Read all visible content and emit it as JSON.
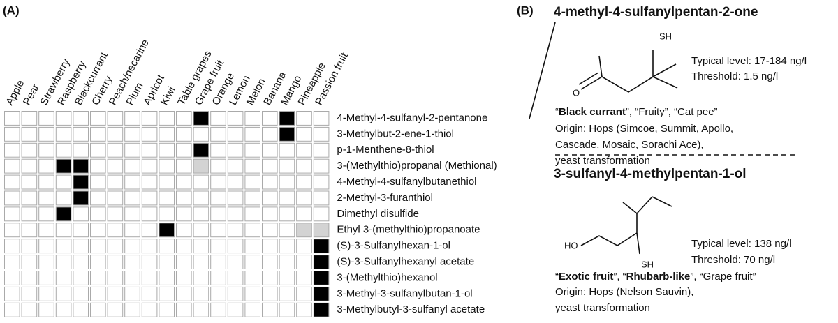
{
  "panel_a": {
    "label": "(A)",
    "columns": [
      "Apple",
      "Pear",
      "Strawberry",
      "Raspberry",
      "Blackcurrant",
      "Cherry",
      "Peach/necarine",
      "Plum",
      "Apricot",
      "Kiwi",
      "Table grapes",
      "Grape fruit",
      "Orange",
      "Lemon",
      "Melon",
      "Banana",
      "Mango",
      "Pineapple",
      "Passion fruit"
    ],
    "rows": [
      "4-Methyl-4-sulfanyl-2-pentanone",
      "3-Methylbut-2-ene-1-thiol",
      "p-1-Menthene-8-thiol",
      "3-(Methylthio)propanal (Methional)",
      "4-Methyl-4-sulfanylbutanethiol",
      "2-Methyl-3-furanthiol",
      "Dimethyl disulfide",
      "Ethyl 3-(methylthio)propanoate",
      "(S)-3-Sulfanylhexan-1-ol",
      "(S)-3-Sulfanylhexanyl acetate",
      "3-(Methylthio)hexanol",
      "3-Methyl-3-sulfanylbutan-1-ol",
      "3-Methylbutyl-3-sulfanyl acetate"
    ],
    "cells": [
      [
        0,
        0,
        0,
        0,
        0,
        0,
        0,
        0,
        0,
        0,
        0,
        1,
        0,
        0,
        0,
        0,
        1,
        0,
        0
      ],
      [
        0,
        0,
        0,
        0,
        0,
        0,
        0,
        0,
        0,
        0,
        0,
        0,
        0,
        0,
        0,
        0,
        1,
        0,
        0
      ],
      [
        0,
        0,
        0,
        0,
        0,
        0,
        0,
        0,
        0,
        0,
        0,
        1,
        0,
        0,
        0,
        0,
        0,
        0,
        0
      ],
      [
        0,
        0,
        0,
        1,
        1,
        0,
        0,
        0,
        0,
        0,
        0,
        0.5,
        0,
        0,
        0,
        0,
        0,
        0,
        0
      ],
      [
        0,
        0,
        0,
        0,
        1,
        0,
        0,
        0,
        0,
        0,
        0,
        0,
        0,
        0,
        0,
        0,
        0,
        0,
        0
      ],
      [
        0,
        0,
        0,
        0,
        1,
        0,
        0,
        0,
        0,
        0,
        0,
        0,
        0,
        0,
        0,
        0,
        0,
        0,
        0
      ],
      [
        0,
        0,
        0,
        1,
        0,
        0,
        0,
        0,
        0,
        0,
        0,
        0,
        0,
        0,
        0,
        0,
        0,
        0,
        0
      ],
      [
        0,
        0,
        0,
        0,
        0,
        0,
        0,
        0,
        0,
        1,
        0,
        0,
        0,
        0,
        0,
        0,
        0,
        0.5,
        0.5
      ],
      [
        0,
        0,
        0,
        0,
        0,
        0,
        0,
        0,
        0,
        0,
        0,
        0,
        0,
        0,
        0,
        0,
        0,
        0,
        1
      ],
      [
        0,
        0,
        0,
        0,
        0,
        0,
        0,
        0,
        0,
        0,
        0,
        0,
        0,
        0,
        0,
        0,
        0,
        0,
        1
      ],
      [
        0,
        0,
        0,
        0,
        0,
        0,
        0,
        0,
        0,
        0,
        0,
        0,
        0,
        0,
        0,
        0,
        0,
        0,
        1
      ],
      [
        0,
        0,
        0,
        0,
        0,
        0,
        0,
        0,
        0,
        0,
        0,
        0,
        0,
        0,
        0,
        0,
        0,
        0,
        1
      ],
      [
        0,
        0,
        0,
        0,
        0,
        0,
        0,
        0,
        0,
        0,
        0,
        0,
        0,
        0,
        0,
        0,
        0,
        0,
        1
      ]
    ],
    "colors": {
      "0": "#ffffff",
      "0.5": "#d3d3d3",
      "1": "#000000"
    }
  },
  "panel_b": {
    "label": "(B)",
    "compounds": [
      {
        "name": "4-methyl-4-sulfanylpentan-2-one",
        "atoms": [
          "SH",
          "O"
        ],
        "typical_level": "Typical level: 17-184 ng/l",
        "threshold": "Threshold: 1.5 ng/l",
        "descriptors": [
          {
            "text": "“"
          },
          {
            "text": "Black currant",
            "bold": true
          },
          {
            "text": "”, “Fruity”, “Cat pee”"
          }
        ],
        "origin": [
          "Origin: Hops (Simcoe, Summit, Apollo,",
          "Cascade, Mosaic, Sorachi Ace),",
          "yeast transformation"
        ]
      },
      {
        "name": "3-sulfanyl-4-methylpentan-1-ol",
        "atoms": [
          "HO",
          "SH"
        ],
        "typical_level": "Typical level: 138 ng/l",
        "threshold": "Threshold: 70 ng/l",
        "descriptors": [
          {
            "text": "“"
          },
          {
            "text": "Exotic fruit",
            "bold": true
          },
          {
            "text": "”, “"
          },
          {
            "text": "Rhubarb-like",
            "bold": true
          },
          {
            "text": "”, “Grape fruit”"
          }
        ],
        "origin": [
          "Origin: Hops (Nelson Sauvin),",
          "yeast transformation"
        ]
      }
    ]
  }
}
